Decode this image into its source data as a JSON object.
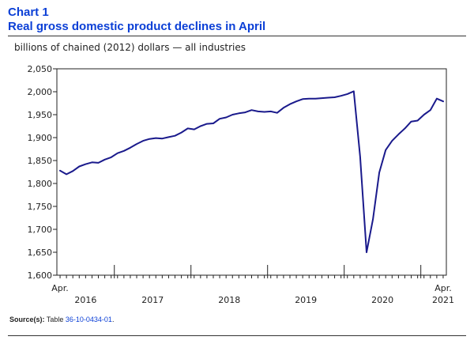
{
  "header": {
    "chart_number": "Chart 1",
    "title": "Real gross domestic product declines in April"
  },
  "chart_data": {
    "type": "line",
    "title": "Real gross domestic product declines in April",
    "subtitle": "billions of chained (2012) dollars — all industries",
    "xlabel": "",
    "ylabel": "billions of chained (2012) dollars — all industries",
    "ylim": [
      1600,
      2050
    ],
    "yticks": [
      1600,
      1650,
      1700,
      1750,
      1800,
      1850,
      1900,
      1950,
      2000,
      2050
    ],
    "ytick_labels": [
      "1,600",
      "1,650",
      "1,700",
      "1,750",
      "1,800",
      "1,850",
      "1,900",
      "1,950",
      "2,000",
      "2,050"
    ],
    "x_start_month": "2016-04",
    "x_end_month": "2021-04",
    "x_month_labels": [
      {
        "month_index": 0,
        "text": "Apr."
      },
      {
        "month_index": 60,
        "text": "Apr."
      }
    ],
    "x_year_labels": [
      {
        "center_month_index": 4,
        "text": "2016"
      },
      {
        "center_month_index": 14.5,
        "text": "2017"
      },
      {
        "center_month_index": 26.5,
        "text": "2018"
      },
      {
        "center_month_index": 38.5,
        "text": "2019"
      },
      {
        "center_month_index": 50.5,
        "text": "2020"
      },
      {
        "center_month_index": 60,
        "text": "2021"
      }
    ],
    "year_boundaries": [
      8.5,
      20.5,
      32.5,
      44.5,
      56.5
    ],
    "grid": false,
    "series": [
      {
        "name": "Real GDP, all industries",
        "color": "#1a1a8c",
        "values": [
          1828,
          1820,
          1827,
          1837,
          1842,
          1846,
          1845,
          1852,
          1857,
          1866,
          1871,
          1878,
          1886,
          1893,
          1897,
          1899,
          1898,
          1901,
          1904,
          1911,
          1920,
          1918,
          1925,
          1930,
          1931,
          1941,
          1944,
          1950,
          1953,
          1955,
          1960,
          1957,
          1956,
          1957,
          1954,
          1965,
          1973,
          1979,
          1984,
          1985,
          1985,
          1986,
          1987,
          1988,
          1991,
          1995,
          2001,
          1858,
          1650,
          1722,
          1824,
          1873,
          1893,
          1907,
          1920,
          1935,
          1937,
          1950,
          1960,
          1985,
          1979
        ]
      }
    ]
  },
  "source": {
    "label": "Source(s):",
    "text": "Table",
    "table_id": "36-10-0434-01",
    "end": "."
  }
}
